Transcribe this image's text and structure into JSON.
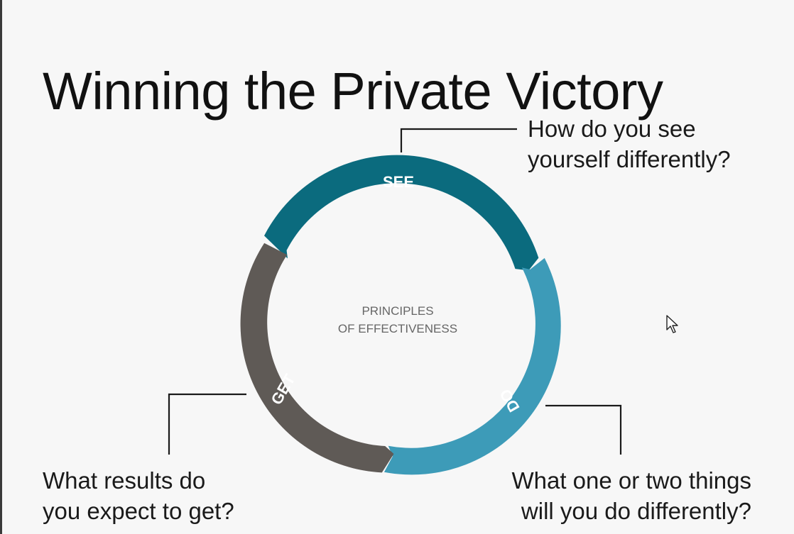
{
  "slide": {
    "title": "Winning the Private Victory"
  },
  "cycle": {
    "center_lines": [
      "PRINCIPLES",
      "OF EFFECTIVENESS"
    ],
    "segments": [
      {
        "label": "SEE",
        "color": "#0b6b7e"
      },
      {
        "label": "DO",
        "color": "#3d9bb8"
      },
      {
        "label": "GET",
        "color": "#5f5a56"
      }
    ]
  },
  "questions": {
    "see": [
      "How do you see",
      "yourself differently?"
    ],
    "do": [
      "What one or two things",
      "will you do differently?"
    ],
    "get": [
      "What results do",
      "you expect to get?"
    ]
  }
}
